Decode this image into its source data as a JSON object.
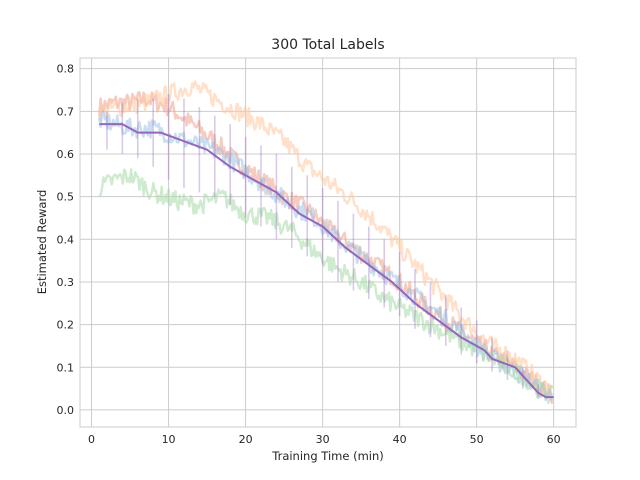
{
  "chart_data": {
    "type": "line",
    "title": "300 Total Labels",
    "xlabel": "Training Time (min)",
    "ylabel": "Estimated Reward",
    "xlim": [
      -1.5,
      62.9
    ],
    "ylim": [
      -0.04,
      0.825
    ],
    "xticks": [
      0,
      10,
      20,
      30,
      40,
      50,
      60
    ],
    "yticks": [
      0.0,
      0.1,
      0.2,
      0.3,
      0.4,
      0.5,
      0.6,
      0.7,
      0.8
    ],
    "xtick_labels": [
      "0",
      "10",
      "20",
      "30",
      "40",
      "50",
      "60"
    ],
    "ytick_labels": [
      "0.0",
      "0.1",
      "0.2",
      "0.3",
      "0.4",
      "0.5",
      "0.6",
      "0.7",
      "0.8"
    ],
    "grid": true,
    "legend": "none",
    "series": [
      {
        "color": "#f0a08a",
        "x": [
          1,
          3,
          5,
          7,
          10,
          13,
          16,
          19,
          22,
          25,
          28,
          31,
          34,
          37,
          40,
          43,
          46,
          49,
          52,
          55,
          58,
          60
        ],
        "y": [
          0.71,
          0.72,
          0.72,
          0.73,
          0.71,
          0.67,
          0.63,
          0.58,
          0.54,
          0.5,
          0.47,
          0.42,
          0.38,
          0.34,
          0.3,
          0.25,
          0.21,
          0.17,
          0.13,
          0.1,
          0.06,
          0.03
        ]
      },
      {
        "color": "#ffc8a0",
        "x": [
          1,
          4,
          7,
          10,
          13,
          16,
          19,
          22,
          25,
          28,
          31,
          34,
          37,
          40,
          43,
          46,
          49,
          52,
          55,
          58,
          60
        ],
        "y": [
          0.7,
          0.71,
          0.72,
          0.74,
          0.76,
          0.73,
          0.7,
          0.67,
          0.63,
          0.57,
          0.53,
          0.49,
          0.44,
          0.38,
          0.32,
          0.26,
          0.2,
          0.15,
          0.12,
          0.07,
          0.04
        ]
      },
      {
        "color": "#9dc3e6",
        "x": [
          1,
          3,
          5,
          8,
          11,
          14,
          17,
          20,
          23,
          26,
          29,
          32,
          35,
          38,
          41,
          44,
          47,
          50,
          53,
          56,
          58,
          60
        ],
        "y": [
          0.68,
          0.67,
          0.66,
          0.66,
          0.64,
          0.62,
          0.6,
          0.56,
          0.52,
          0.48,
          0.45,
          0.4,
          0.36,
          0.32,
          0.28,
          0.24,
          0.2,
          0.15,
          0.11,
          0.08,
          0.05,
          0.03
        ]
      },
      {
        "color": "#a8dba8",
        "x": [
          1,
          3,
          5,
          8,
          11,
          14,
          17,
          20,
          23,
          26,
          29,
          32,
          35,
          38,
          41,
          44,
          47,
          50,
          53,
          56,
          58,
          60
        ],
        "y": [
          0.52,
          0.54,
          0.55,
          0.51,
          0.49,
          0.48,
          0.5,
          0.46,
          0.45,
          0.42,
          0.37,
          0.33,
          0.3,
          0.26,
          0.23,
          0.2,
          0.17,
          0.14,
          0.11,
          0.08,
          0.05,
          0.03
        ]
      },
      {
        "color": "#9467bd",
        "x": [
          1,
          4,
          6,
          9,
          12,
          15,
          18,
          21,
          24,
          27,
          30,
          33,
          36,
          39,
          42,
          45,
          48,
          51,
          52,
          55,
          57,
          58,
          59,
          60
        ],
        "y": [
          0.67,
          0.67,
          0.65,
          0.65,
          0.63,
          0.61,
          0.57,
          0.54,
          0.51,
          0.46,
          0.43,
          0.38,
          0.34,
          0.3,
          0.25,
          0.21,
          0.17,
          0.14,
          0.12,
          0.1,
          0.06,
          0.04,
          0.03,
          0.03
        ],
        "error_x": [
          2,
          4,
          6,
          8,
          10,
          12,
          14,
          16,
          18,
          20,
          22,
          24,
          26,
          28,
          30,
          32,
          34,
          36,
          38,
          40,
          42,
          44,
          46,
          48,
          50,
          52,
          54,
          56,
          58
        ],
        "error_low": [
          0.61,
          0.6,
          0.59,
          0.57,
          0.54,
          0.52,
          0.51,
          0.5,
          0.48,
          0.45,
          0.43,
          0.4,
          0.38,
          0.36,
          0.34,
          0.3,
          0.28,
          0.26,
          0.24,
          0.22,
          0.19,
          0.17,
          0.15,
          0.13,
          0.11,
          0.09,
          0.07,
          0.05,
          0.03
        ],
        "error_high": [
          0.7,
          0.72,
          0.73,
          0.73,
          0.74,
          0.73,
          0.71,
          0.69,
          0.67,
          0.64,
          0.62,
          0.6,
          0.57,
          0.55,
          0.52,
          0.49,
          0.46,
          0.43,
          0.4,
          0.37,
          0.33,
          0.3,
          0.27,
          0.24,
          0.21,
          0.17,
          0.14,
          0.1,
          0.06
        ]
      }
    ]
  }
}
